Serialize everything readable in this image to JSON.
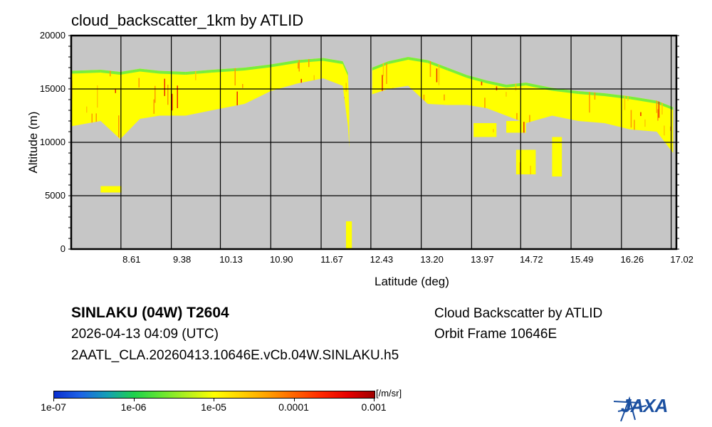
{
  "chart_data": {
    "type": "heatmap",
    "title": "cloud_backscatter_1km by ATLID",
    "xlabel": "Latitude (deg)",
    "ylabel": "Altitude (m)",
    "xlim": [
      7.85,
      17.1
    ],
    "ylim": [
      0,
      20000
    ],
    "grid": true,
    "xticks": [
      "8.61",
      "9.38",
      "10.13",
      "10.90",
      "11.67",
      "12.43",
      "13.20",
      "13.97",
      "14.72",
      "15.49",
      "16.26",
      "17.02"
    ],
    "yticks": [
      "0",
      "5000",
      "10000",
      "15000",
      "20000"
    ],
    "background_color": "#c6c6c6",
    "colorbar": {
      "unit": "[/m/sr]",
      "scale": "log",
      "range": [
        1e-07,
        0.001
      ],
      "tick_labels": [
        "1e-07",
        "1e-06",
        "1e-05",
        "0.0001",
        "0.001"
      ],
      "colors": [
        "#0a2fd0",
        "#1e64e6",
        "#14a0b4",
        "#1ed24b",
        "#64e632",
        "#b4f01e",
        "#ffff00",
        "#ffd200",
        "#ffa000",
        "#ff6400",
        "#ff2800",
        "#e60000",
        "#a00000"
      ]
    },
    "cloud_layers": [
      {
        "name": "main-layer-west",
        "lat": [
          7.85,
          8.3,
          8.6,
          8.9,
          9.2,
          9.6,
          10.0,
          10.5,
          10.9,
          11.3,
          11.7,
          12.0,
          12.08,
          12.1
        ],
        "top": [
          16700,
          16800,
          16600,
          16900,
          16700,
          16600,
          16800,
          17000,
          17300,
          17700,
          17900,
          17600,
          16500,
          13000
        ],
        "base": [
          11500,
          12000,
          10300,
          12200,
          12500,
          12500,
          13000,
          13600,
          14800,
          15500,
          16000,
          15300,
          11500,
          9500
        ]
      },
      {
        "name": "main-layer-east",
        "lat": [
          12.45,
          12.7,
          13.0,
          13.3,
          13.6,
          13.9,
          14.2,
          14.5,
          14.8,
          15.2,
          15.6,
          16.0,
          16.4,
          16.8,
          17.05
        ],
        "top": [
          17000,
          17600,
          18000,
          17700,
          17000,
          16300,
          15800,
          15400,
          15600,
          15100,
          14800,
          14600,
          14300,
          13900,
          13300
        ],
        "base": [
          14500,
          15000,
          15300,
          13600,
          13500,
          13500,
          13200,
          12500,
          11800,
          12500,
          12000,
          11800,
          11200,
          11000,
          9000
        ]
      },
      {
        "name": "low-patch",
        "lat": [
          8.3,
          8.62
        ],
        "top": [
          5900,
          5900
        ],
        "base": [
          5300,
          5300
        ]
      },
      {
        "name": "falling-streak",
        "lat": [
          12.05,
          12.14
        ],
        "top": [
          2600,
          2600
        ],
        "base": [
          0,
          0
        ]
      },
      {
        "name": "mid-cells-1",
        "lat": [
          14.0,
          14.35
        ],
        "top": [
          11800,
          11800
        ],
        "base": [
          10500,
          10500
        ]
      },
      {
        "name": "mid-cells-2",
        "lat": [
          14.5,
          14.8
        ],
        "top": [
          12000,
          12000
        ],
        "base": [
          10900,
          10900
        ]
      },
      {
        "name": "mid-cells-3",
        "lat": [
          14.65,
          14.95
        ],
        "top": [
          9300,
          9300
        ],
        "base": [
          7000,
          7000
        ]
      },
      {
        "name": "mid-cells-4",
        "lat": [
          15.2,
          15.35
        ],
        "top": [
          10500,
          10500
        ],
        "base": [
          6800,
          6800
        ]
      }
    ]
  },
  "info": {
    "storm": "SINLAKU (04W) T2604",
    "datetime": "2026-04-13 04:09 (UTC)",
    "filename": "2AATL_CLA.20260413.10646E.vCb.04W.SINLAKU.h5",
    "product": "Cloud Backscatter by ATLID",
    "orbit": "Orbit Frame 10646E"
  },
  "logo": {
    "text": "JAXA",
    "color": "#1a4fa0"
  }
}
